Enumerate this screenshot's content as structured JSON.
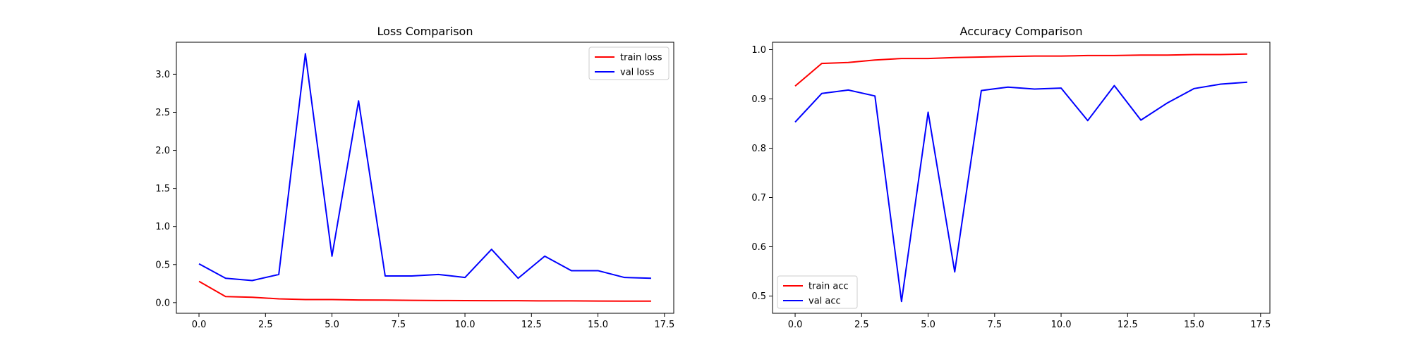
{
  "chart_data": [
    {
      "type": "line",
      "title": "Loss Comparison",
      "xlabel": "",
      "ylabel": "",
      "xlim": [
        -0.85,
        17.85
      ],
      "ylim": [
        -0.14,
        3.42
      ],
      "xticks": [
        0,
        2.5,
        5,
        7.5,
        10,
        12.5,
        15,
        17.5
      ],
      "xtick_labels": [
        "0.0",
        "2.5",
        "5.0",
        "7.5",
        "10.0",
        "12.5",
        "15.0",
        "17.5"
      ],
      "yticks": [
        0,
        0.5,
        1.0,
        1.5,
        2.0,
        2.5,
        3.0
      ],
      "ytick_labels": [
        "0.0",
        "0.5",
        "1.0",
        "1.5",
        "2.0",
        "2.5",
        "3.0"
      ],
      "legend_position": "upper right",
      "grid": false,
      "x": [
        0,
        1,
        2,
        3,
        4,
        5,
        6,
        7,
        8,
        9,
        10,
        11,
        12,
        13,
        14,
        15,
        16,
        17
      ],
      "series": [
        {
          "name": "train loss",
          "color": "#ff0000",
          "values": [
            0.28,
            0.08,
            0.07,
            0.05,
            0.04,
            0.04,
            0.035,
            0.033,
            0.03,
            0.028,
            0.027,
            0.025,
            0.025,
            0.023,
            0.023,
            0.021,
            0.02,
            0.019
          ]
        },
        {
          "name": "val loss",
          "color": "#0000ff",
          "values": [
            0.51,
            0.32,
            0.29,
            0.37,
            3.27,
            0.61,
            2.65,
            0.35,
            0.35,
            0.37,
            0.33,
            0.7,
            0.32,
            0.61,
            0.42,
            0.42,
            0.33,
            0.32
          ]
        }
      ]
    },
    {
      "type": "line",
      "title": "Accuracy Comparison",
      "xlabel": "",
      "ylabel": "",
      "xlim": [
        -0.85,
        17.85
      ],
      "ylim": [
        0.465,
        1.015
      ],
      "xticks": [
        0,
        2.5,
        5,
        7.5,
        10,
        12.5,
        15,
        17.5
      ],
      "xtick_labels": [
        "0.0",
        "2.5",
        "5.0",
        "7.5",
        "10.0",
        "12.5",
        "15.0",
        "17.5"
      ],
      "yticks": [
        0.5,
        0.6,
        0.7,
        0.8,
        0.9,
        1.0
      ],
      "ytick_labels": [
        "0.5",
        "0.6",
        "0.7",
        "0.8",
        "0.9",
        "1.0"
      ],
      "legend_position": "lower left",
      "grid": false,
      "x": [
        0,
        1,
        2,
        3,
        4,
        5,
        6,
        7,
        8,
        9,
        10,
        11,
        12,
        13,
        14,
        15,
        16,
        17
      ],
      "series": [
        {
          "name": "train acc",
          "color": "#ff0000",
          "values": [
            0.926,
            0.972,
            0.974,
            0.979,
            0.982,
            0.982,
            0.984,
            0.985,
            0.986,
            0.987,
            0.987,
            0.988,
            0.988,
            0.989,
            0.989,
            0.99,
            0.99,
            0.991
          ]
        },
        {
          "name": "val acc",
          "color": "#0000ff",
          "values": [
            0.853,
            0.911,
            0.918,
            0.906,
            0.489,
            0.873,
            0.549,
            0.917,
            0.924,
            0.92,
            0.922,
            0.856,
            0.927,
            0.857,
            0.892,
            0.921,
            0.93,
            0.934
          ]
        }
      ]
    }
  ]
}
